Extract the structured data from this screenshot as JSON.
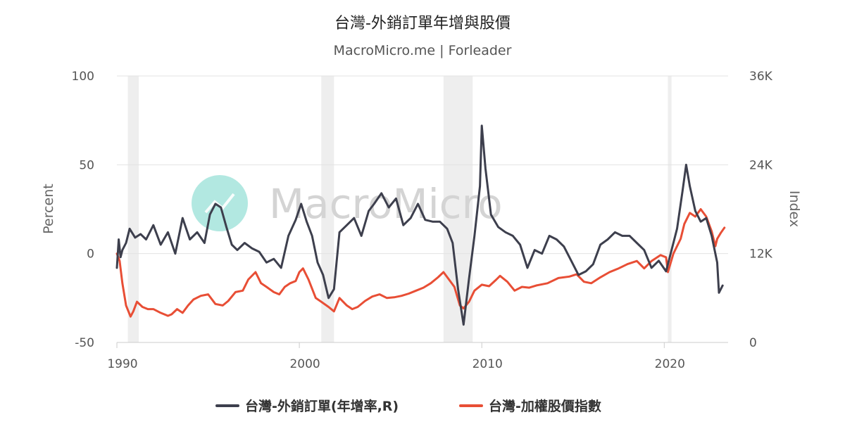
{
  "chart_data": {
    "type": "line",
    "title": "台灣-外銷訂單年增與股價",
    "subtitle": "MacroMicro.me | Forleader",
    "watermark": "MacroMicro",
    "y_left_label": "Percent",
    "y_right_label": "Index",
    "y_left_range": [
      -50,
      100
    ],
    "y_right_range": [
      0,
      36000
    ],
    "y_left_ticks": [
      "100",
      "50",
      "0",
      "-50"
    ],
    "y_right_ticks": [
      "36K",
      "24K",
      "12K",
      "0"
    ],
    "x_range": [
      1990,
      2023.5
    ],
    "x_ticks": [
      "1990",
      "2000",
      "2010",
      "2020"
    ],
    "grid": true,
    "legend_position": "bottom",
    "recession_bands": [
      [
        1990.6,
        1991.2
      ],
      [
        2001.2,
        2001.9
      ],
      [
        2007.9,
        2009.5
      ],
      [
        2020.2,
        2020.4
      ]
    ],
    "colors": {
      "orders": "#3d3f4d",
      "index": "#e84e35",
      "band": "#eeeeee",
      "grid": "#e3e3e3"
    },
    "series": [
      {
        "name": "台灣-外銷訂單(年增率,R)",
        "axis": "left",
        "x": [
          1990.0,
          1990.1,
          1990.2,
          1990.3,
          1990.5,
          1990.7,
          1991.0,
          1991.3,
          1991.6,
          1992.0,
          1992.4,
          1992.8,
          1993.2,
          1993.6,
          1994.0,
          1994.4,
          1994.8,
          1995.1,
          1995.4,
          1995.7,
          1996.0,
          1996.3,
          1996.6,
          1997.0,
          1997.4,
          1997.8,
          1998.2,
          1998.6,
          1999.0,
          1999.4,
          1999.8,
          2000.1,
          2000.4,
          2000.7,
          2001.0,
          2001.3,
          2001.6,
          2001.9,
          2002.2,
          2002.6,
          2003.0,
          2003.4,
          2003.8,
          2004.1,
          2004.5,
          2004.9,
          2005.3,
          2005.7,
          2006.1,
          2006.5,
          2006.9,
          2007.3,
          2007.7,
          2008.1,
          2008.4,
          2008.7,
          2009.0,
          2009.3,
          2009.6,
          2009.9,
          2010.0,
          2010.2,
          2010.5,
          2010.9,
          2011.3,
          2011.7,
          2012.1,
          2012.5,
          2012.9,
          2013.3,
          2013.7,
          2014.1,
          2014.5,
          2014.9,
          2015.3,
          2015.7,
          2016.1,
          2016.5,
          2016.9,
          2017.3,
          2017.7,
          2018.1,
          2018.5,
          2018.9,
          2019.3,
          2019.7,
          2020.1,
          2020.4,
          2020.7,
          2021.0,
          2021.2,
          2021.4,
          2021.7,
          2022.0,
          2022.3,
          2022.6,
          2022.9,
          2023.0,
          2023.2
        ],
        "values": [
          -8,
          8,
          -2,
          2,
          6,
          14,
          9,
          11,
          8,
          16,
          5,
          12,
          0,
          20,
          8,
          12,
          6,
          22,
          28,
          26,
          15,
          5,
          2,
          6,
          3,
          1,
          -5,
          -3,
          -8,
          10,
          19,
          28,
          18,
          10,
          -5,
          -12,
          -25,
          -20,
          12,
          16,
          20,
          10,
          24,
          28,
          34,
          26,
          31,
          16,
          20,
          28,
          19,
          18,
          18,
          14,
          6,
          -20,
          -40,
          -14,
          10,
          38,
          72,
          48,
          22,
          15,
          12,
          10,
          5,
          -8,
          2,
          0,
          10,
          8,
          4,
          -4,
          -12,
          -10,
          -6,
          5,
          8,
          12,
          10,
          10,
          6,
          2,
          -8,
          -4,
          -10,
          2,
          14,
          35,
          50,
          38,
          24,
          18,
          20,
          10,
          -5,
          -22,
          -18
        ]
      },
      {
        "name": "台灣-加權股價指數",
        "axis": "right",
        "x": [
          1990.0,
          1990.15,
          1990.3,
          1990.5,
          1990.75,
          1990.9,
          1991.1,
          1991.4,
          1991.7,
          1992.0,
          1992.4,
          1992.8,
          1993.0,
          1993.3,
          1993.6,
          1993.9,
          1994.2,
          1994.6,
          1995.0,
          1995.4,
          1995.8,
          1996.1,
          1996.5,
          1996.9,
          1997.2,
          1997.6,
          1997.9,
          1998.2,
          1998.6,
          1998.9,
          1999.2,
          1999.5,
          1999.8,
          2000.0,
          2000.2,
          2000.5,
          2000.9,
          2001.2,
          2001.6,
          2001.9,
          2002.2,
          2002.6,
          2002.9,
          2003.2,
          2003.6,
          2004.0,
          2004.4,
          2004.8,
          2005.2,
          2005.6,
          2006.0,
          2006.4,
          2006.8,
          2007.2,
          2007.6,
          2007.9,
          2008.2,
          2008.5,
          2008.8,
          2009.0,
          2009.3,
          2009.6,
          2010.0,
          2010.4,
          2010.8,
          2011.0,
          2011.4,
          2011.8,
          2012.2,
          2012.6,
          2013.0,
          2013.6,
          2014.2,
          2014.8,
          2015.2,
          2015.6,
          2016.0,
          2016.5,
          2017.0,
          2017.5,
          2018.0,
          2018.5,
          2018.9,
          2019.3,
          2019.8,
          2020.1,
          2020.2,
          2020.5,
          2020.9,
          2021.1,
          2021.4,
          2021.7,
          2022.0,
          2022.3,
          2022.6,
          2022.8,
          2022.9,
          2023.1,
          2023.3
        ],
        "values": [
          12000,
          11000,
          8000,
          5000,
          3500,
          4200,
          5500,
          4800,
          4500,
          4500,
          4000,
          3600,
          3800,
          4500,
          4000,
          5000,
          5800,
          6300,
          6500,
          5200,
          5000,
          5600,
          6800,
          7000,
          8500,
          9500,
          8000,
          7500,
          6800,
          6500,
          7500,
          8000,
          8300,
          9500,
          10000,
          8500,
          6000,
          5500,
          4800,
          4200,
          6000,
          5000,
          4500,
          4800,
          5600,
          6200,
          6500,
          6000,
          6100,
          6300,
          6600,
          7000,
          7400,
          8000,
          8800,
          9500,
          8500,
          7500,
          5000,
          4600,
          5500,
          7000,
          7800,
          7600,
          8500,
          9000,
          8200,
          7000,
          7500,
          7400,
          7700,
          8000,
          8700,
          8900,
          9200,
          8200,
          8000,
          8800,
          9500,
          10000,
          10600,
          11000,
          10000,
          11000,
          11800,
          11500,
          9500,
          12000,
          14000,
          16000,
          17500,
          17000,
          18000,
          17000,
          15000,
          13000,
          14000,
          14800,
          15500
        ]
      }
    ]
  }
}
